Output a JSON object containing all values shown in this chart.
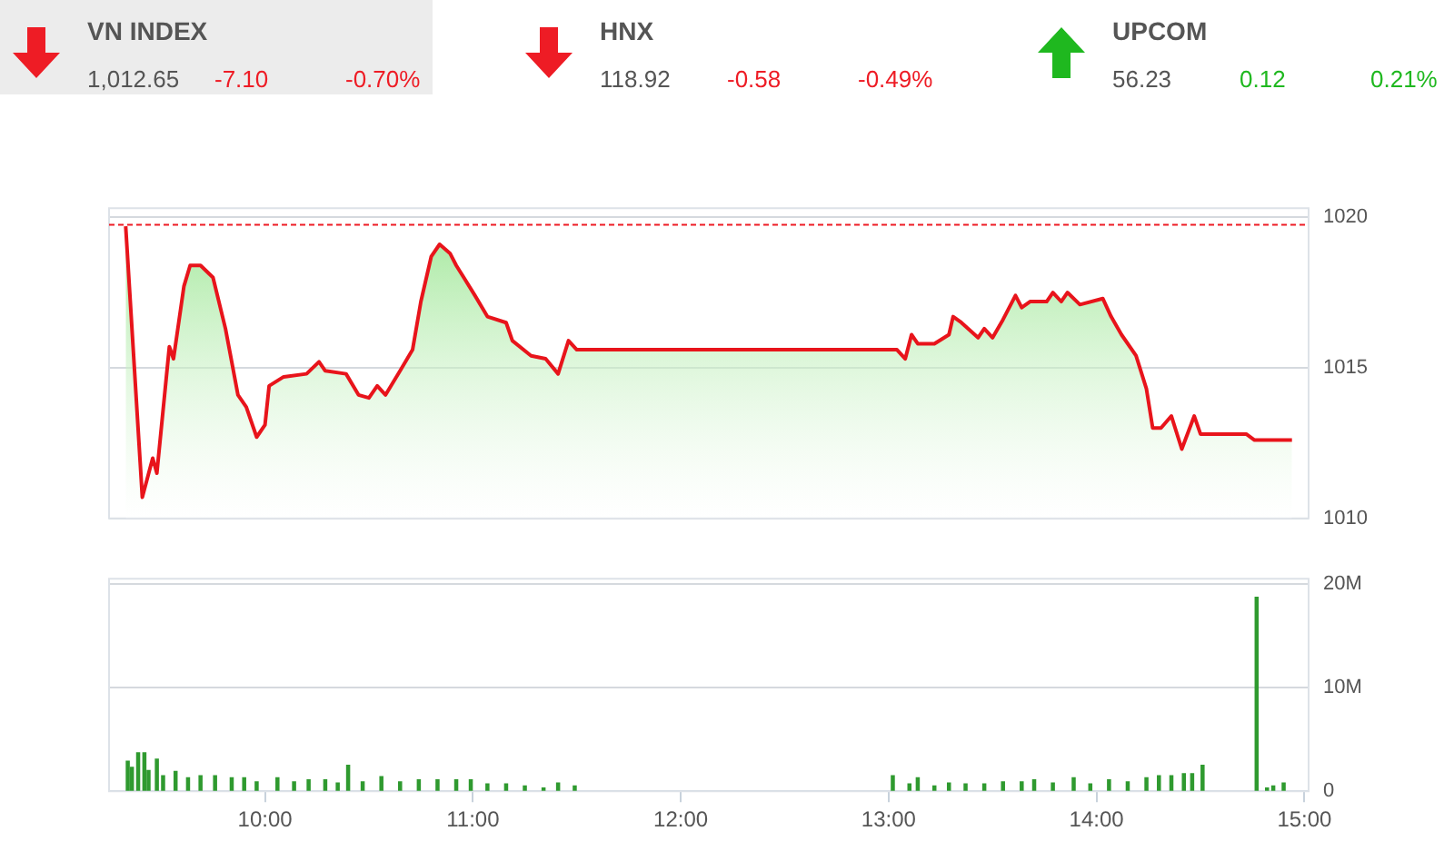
{
  "chart_data": [
    {
      "type": "other",
      "annotations": [
        "VN INDEX",
        "1,012.65",
        "-7.10",
        "-0.70%",
        "HNX",
        "118.92",
        "-0.58",
        "-0.49%",
        "UPCOM",
        "56.23",
        "0.12",
        "0.21%"
      ],
      "colors": [
        "#ee1c25",
        "#ee1c25",
        "#1fb81f"
      ]
    },
    {
      "type": "area",
      "tick_labels": "y",
      "grid": "y",
      "xlim": [
        9.25,
        15.02
      ],
      "ylim": [
        1010,
        1020.3
      ],
      "yticks": [
        1010,
        1015,
        1020
      ],
      "ref_lines": [
        {
          "axis": "y",
          "value": 1019.75,
          "color": "#ee1c25",
          "line_style": "dashed"
        }
      ],
      "series": [
        {
          "color": "#e8141b",
          "x": [
            9.33,
            9.41,
            9.46,
            9.48,
            9.54,
            9.56,
            9.61,
            9.64,
            9.69,
            9.75,
            9.81,
            9.87,
            9.91,
            9.96,
            10.0,
            10.02,
            10.09,
            10.2,
            10.26,
            10.29,
            10.39,
            10.45,
            10.5,
            10.54,
            10.58,
            10.65,
            10.71,
            10.75,
            10.8,
            10.84,
            10.89,
            10.92,
            11.01,
            11.07,
            11.16,
            11.19,
            11.28,
            11.35,
            11.41,
            11.46,
            11.5,
            13.04,
            13.08,
            13.11,
            13.14,
            13.22,
            13.29,
            13.31,
            13.35,
            13.43,
            13.46,
            13.5,
            13.55,
            13.61,
            13.64,
            13.68,
            13.76,
            13.79,
            13.83,
            13.86,
            13.92,
            14.03,
            14.07,
            14.12,
            14.19,
            14.24,
            14.27,
            14.31,
            14.36,
            14.41,
            14.47,
            14.5,
            14.72,
            14.76,
            14.94
          ],
          "values": [
            1019.7,
            1010.7,
            1012.0,
            1011.5,
            1015.7,
            1015.3,
            1017.7,
            1018.4,
            1018.4,
            1018.0,
            1016.3,
            1014.1,
            1013.7,
            1012.7,
            1013.1,
            1014.4,
            1014.7,
            1014.8,
            1015.2,
            1014.9,
            1014.8,
            1014.1,
            1014.0,
            1014.4,
            1014.1,
            1014.9,
            1015.6,
            1017.2,
            1018.7,
            1019.1,
            1018.8,
            1018.4,
            1017.4,
            1016.7,
            1016.5,
            1015.9,
            1015.4,
            1015.3,
            1014.8,
            1015.9,
            1015.6,
            1015.6,
            1015.3,
            1016.1,
            1015.8,
            1015.8,
            1016.1,
            1016.7,
            1016.5,
            1016.0,
            1016.3,
            1016.0,
            1016.6,
            1017.4,
            1017.0,
            1017.2,
            1017.2,
            1017.5,
            1017.2,
            1017.5,
            1017.1,
            1017.3,
            1016.7,
            1016.1,
            1015.4,
            1014.3,
            1013.0,
            1013.0,
            1013.4,
            1012.3,
            1013.4,
            1012.8,
            1012.8,
            1012.6,
            1012.6
          ]
        }
      ]
    },
    {
      "type": "bar",
      "grid": "y",
      "xlim": [
        9.25,
        15.02
      ],
      "ylim": [
        0,
        20.5
      ],
      "xticks": [
        {
          "value": 10,
          "label": "10:00"
        },
        {
          "value": 11,
          "label": "11:00"
        },
        {
          "value": 12,
          "label": "12:00"
        },
        {
          "value": 13,
          "label": "13:00"
        },
        {
          "value": 14,
          "label": "14:00"
        },
        {
          "value": 15,
          "label": "15:00"
        }
      ],
      "yticks": [
        0,
        {
          "value": 10,
          "label": "10M"
        },
        {
          "value": 20,
          "label": "20M"
        }
      ],
      "series": [
        {
          "color": "#2f9a2f",
          "x": [
            9.34,
            9.36,
            9.39,
            9.42,
            9.44,
            9.48,
            9.51,
            9.57,
            9.63,
            9.69,
            9.76,
            9.84,
            9.9,
            9.96,
            10.06,
            10.14,
            10.21,
            10.29,
            10.35,
            10.4,
            10.47,
            10.56,
            10.65,
            10.74,
            10.83,
            10.92,
            10.99,
            11.07,
            11.16,
            11.25,
            11.34,
            11.41,
            11.49,
            13.02,
            13.1,
            13.14,
            13.22,
            13.29,
            13.37,
            13.46,
            13.55,
            13.64,
            13.7,
            13.79,
            13.89,
            13.97,
            14.06,
            14.15,
            14.24,
            14.3,
            14.36,
            14.42,
            14.46,
            14.51,
            14.77,
            14.82,
            14.85,
            14.9
          ],
          "values": [
            2.9,
            2.3,
            3.7,
            3.7,
            2.0,
            3.1,
            1.5,
            1.9,
            1.3,
            1.5,
            1.5,
            1.3,
            1.3,
            0.9,
            1.3,
            0.9,
            1.1,
            1.1,
            0.8,
            2.5,
            0.9,
            1.4,
            0.9,
            1.1,
            1.1,
            1.1,
            1.1,
            0.7,
            0.7,
            0.5,
            0.3,
            0.8,
            0.5,
            1.5,
            0.7,
            1.3,
            0.5,
            0.8,
            0.7,
            0.7,
            0.9,
            0.9,
            1.1,
            0.8,
            1.3,
            0.7,
            1.1,
            0.9,
            1.3,
            1.5,
            1.5,
            1.7,
            1.7,
            2.5,
            18.7,
            0.3,
            0.5,
            0.8
          ]
        }
      ]
    }
  ]
}
